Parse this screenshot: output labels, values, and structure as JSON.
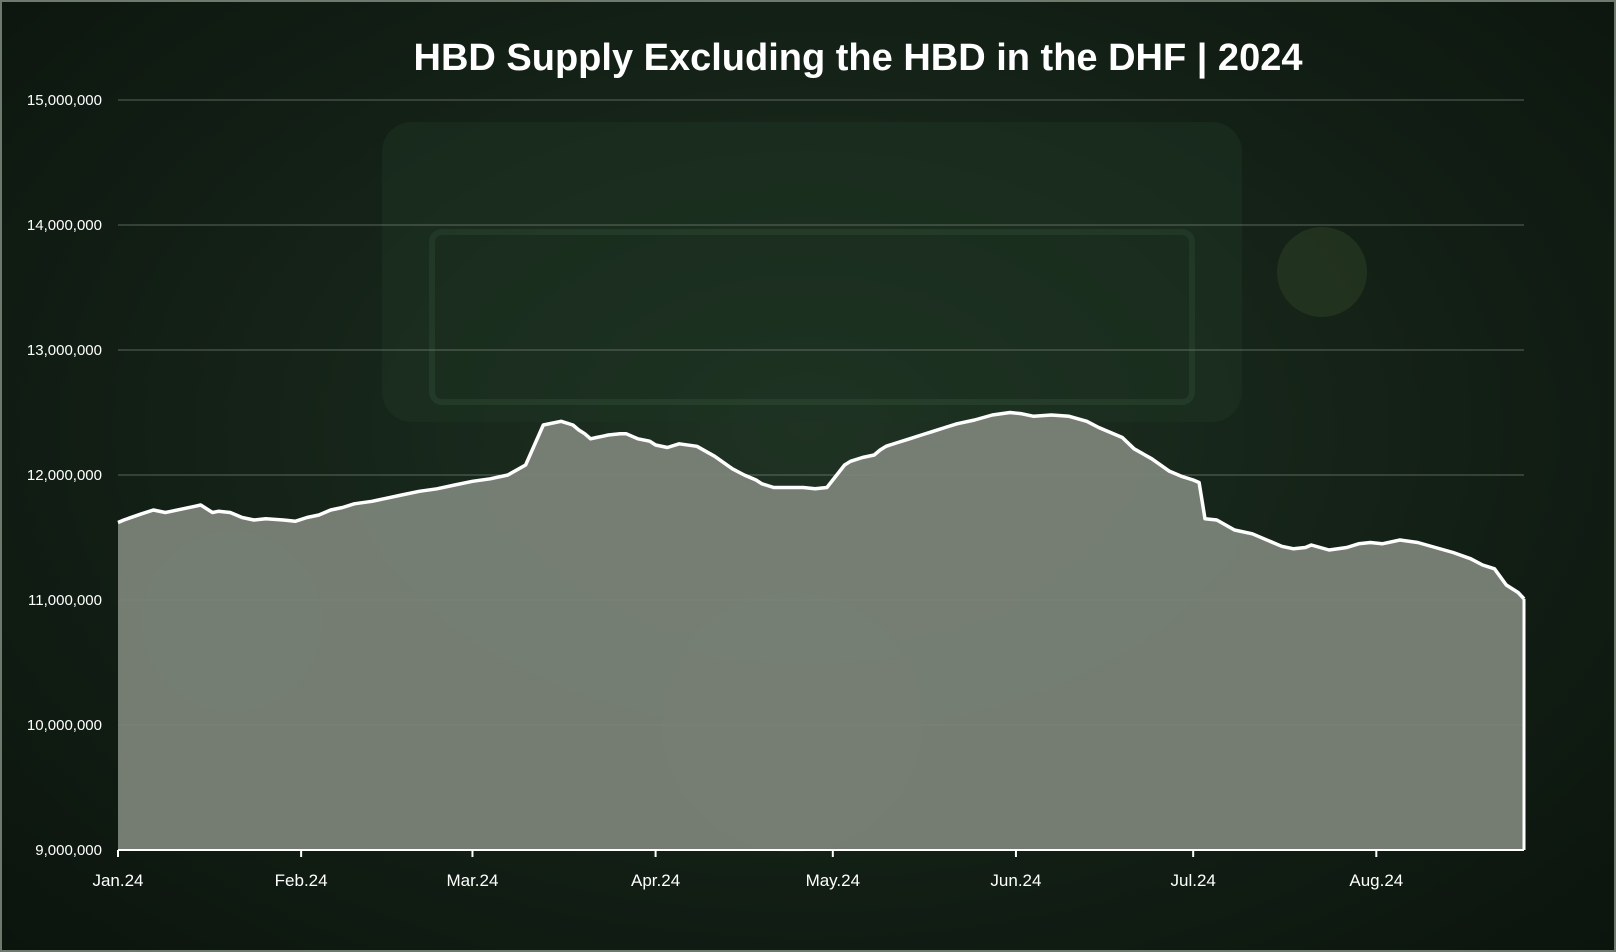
{
  "chart_data": {
    "type": "area",
    "title": "HBD Supply Excluding the HBD in the DHF | 2024",
    "xlabel": "",
    "ylabel": "",
    "ylim": [
      9000000,
      15000000
    ],
    "y_ticks": [
      9000000,
      10000000,
      11000000,
      12000000,
      13000000,
      14000000,
      15000000
    ],
    "y_tick_labels": [
      "9,000,000",
      "10,000,000",
      "11,000,000",
      "12,000,000",
      "13,000,000",
      "14,000,000",
      "15,000,000"
    ],
    "x_ticks": [
      "2024-01-01",
      "2024-02-01",
      "2024-03-01",
      "2024-04-01",
      "2024-05-01",
      "2024-06-01",
      "2024-07-01",
      "2024-08-01"
    ],
    "x_tick_labels": [
      "Jan.24",
      "Feb.24",
      "Mar.24",
      "Apr.24",
      "May.24",
      "Jun.24",
      "Jul.24",
      "Aug.24"
    ],
    "xlim": [
      "2024-01-01",
      "2024-08-26"
    ],
    "grid": true,
    "colors": {
      "line": "#ffffff",
      "fill": "#7e857b",
      "grid": "#8a948a",
      "text": "#ffffff"
    },
    "series": [
      {
        "x": [
          "2024-01-01",
          "2024-01-02",
          "2024-01-05",
          "2024-01-07",
          "2024-01-09",
          "2024-01-10",
          "2024-01-12",
          "2024-01-14",
          "2024-01-15",
          "2024-01-17",
          "2024-01-18",
          "2024-01-20",
          "2024-01-21",
          "2024-01-22",
          "2024-01-24",
          "2024-01-26",
          "2024-01-29",
          "2024-01-31",
          "2024-02-02",
          "2024-02-04",
          "2024-02-06",
          "2024-02-08",
          "2024-02-10",
          "2024-02-13",
          "2024-02-15",
          "2024-02-18",
          "2024-02-21",
          "2024-02-24",
          "2024-02-27",
          "2024-03-01",
          "2024-03-04",
          "2024-03-07",
          "2024-03-10",
          "2024-03-13",
          "2024-03-16",
          "2024-03-18",
          "2024-03-19",
          "2024-03-20",
          "2024-03-21",
          "2024-03-22",
          "2024-03-23",
          "2024-03-24",
          "2024-03-26",
          "2024-03-27",
          "2024-03-29",
          "2024-03-31",
          "2024-04-01",
          "2024-04-03",
          "2024-04-05",
          "2024-04-08",
          "2024-04-11",
          "2024-04-14",
          "2024-04-16",
          "2024-04-18",
          "2024-04-19",
          "2024-04-21",
          "2024-04-24",
          "2024-04-26",
          "2024-04-28",
          "2024-04-30",
          "2024-05-02",
          "2024-05-03",
          "2024-05-04",
          "2024-05-06",
          "2024-05-08",
          "2024-05-09",
          "2024-05-10",
          "2024-05-12",
          "2024-05-14",
          "2024-05-16",
          "2024-05-18",
          "2024-05-20",
          "2024-05-22",
          "2024-05-25",
          "2024-05-28",
          "2024-05-31",
          "2024-06-02",
          "2024-06-04",
          "2024-06-07",
          "2024-06-10",
          "2024-06-13",
          "2024-06-15",
          "2024-06-17",
          "2024-06-19",
          "2024-06-21",
          "2024-06-24",
          "2024-06-27",
          "2024-06-29",
          "2024-07-01",
          "2024-07-02",
          "2024-07-03",
          "2024-07-05",
          "2024-07-08",
          "2024-07-11",
          "2024-07-13",
          "2024-07-16",
          "2024-07-18",
          "2024-07-20",
          "2024-07-21",
          "2024-07-24",
          "2024-07-27",
          "2024-07-29",
          "2024-07-31",
          "2024-08-02",
          "2024-08-05",
          "2024-08-08",
          "2024-08-11",
          "2024-08-14",
          "2024-08-17",
          "2024-08-19",
          "2024-08-21",
          "2024-08-23",
          "2024-08-25",
          "2024-08-26"
        ],
        "values": [
          11620000,
          11640000,
          11690000,
          11720000,
          11700000,
          11710000,
          11730000,
          11750000,
          11760000,
          11700000,
          11710000,
          11700000,
          11680000,
          11660000,
          11640000,
          11650000,
          11640000,
          11630000,
          11660000,
          11680000,
          11720000,
          11740000,
          11770000,
          11790000,
          11810000,
          11840000,
          11870000,
          11890000,
          11920000,
          11950000,
          11970000,
          12000000,
          12080000,
          12400000,
          12430000,
          12400000,
          12360000,
          12330000,
          12290000,
          12300000,
          12310000,
          12320000,
          12330000,
          12330000,
          12290000,
          12270000,
          12240000,
          12220000,
          12250000,
          12230000,
          12150000,
          12050000,
          12000000,
          11960000,
          11930000,
          11900000,
          11900000,
          11900000,
          11890000,
          11900000,
          12020000,
          12080000,
          12110000,
          12140000,
          12160000,
          12200000,
          12230000,
          12260000,
          12290000,
          12320000,
          12350000,
          12380000,
          12410000,
          12440000,
          12480000,
          12500000,
          12490000,
          12470000,
          12480000,
          12470000,
          12430000,
          12380000,
          12340000,
          12300000,
          12210000,
          12130000,
          12030000,
          11990000,
          11960000,
          11940000,
          11650000,
          11640000,
          11560000,
          11530000,
          11490000,
          11430000,
          11410000,
          11420000,
          11440000,
          11400000,
          11420000,
          11450000,
          11460000,
          11450000,
          11480000,
          11460000,
          11420000,
          11380000,
          11330000,
          11280000,
          11250000,
          11120000,
          11060000,
          11010000
        ]
      }
    ]
  }
}
